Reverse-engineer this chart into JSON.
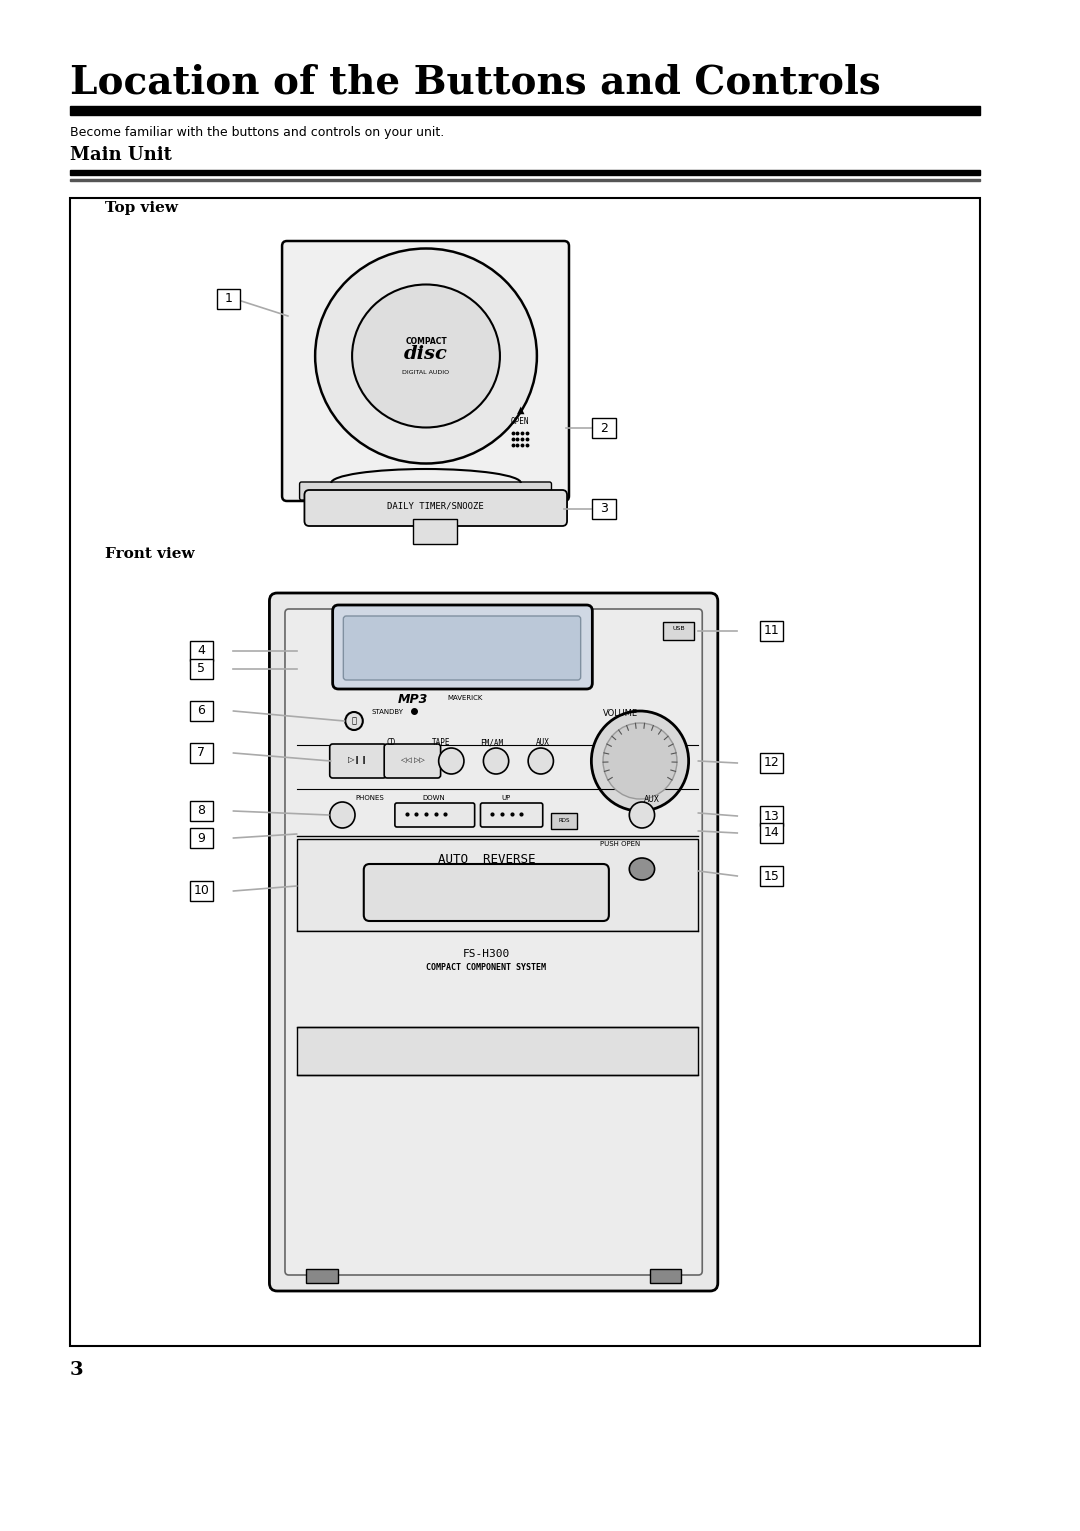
{
  "title": "Location of the Buttons and Controls",
  "subtitle": "Become familiar with the buttons and controls on your unit.",
  "section": "Main Unit",
  "top_view_label": "Top view",
  "front_view_label": "Front view",
  "page_number": "3",
  "bg_color": "#ffffff",
  "text_color": "#000000",
  "gray_color": "#aaaaaa",
  "device_fill": "#f2f2f2",
  "device_edge": "#333333",
  "screen_fill": "#c8d0dc",
  "knob_fill": "#d8d8d8",
  "dark_fill": "#888888"
}
